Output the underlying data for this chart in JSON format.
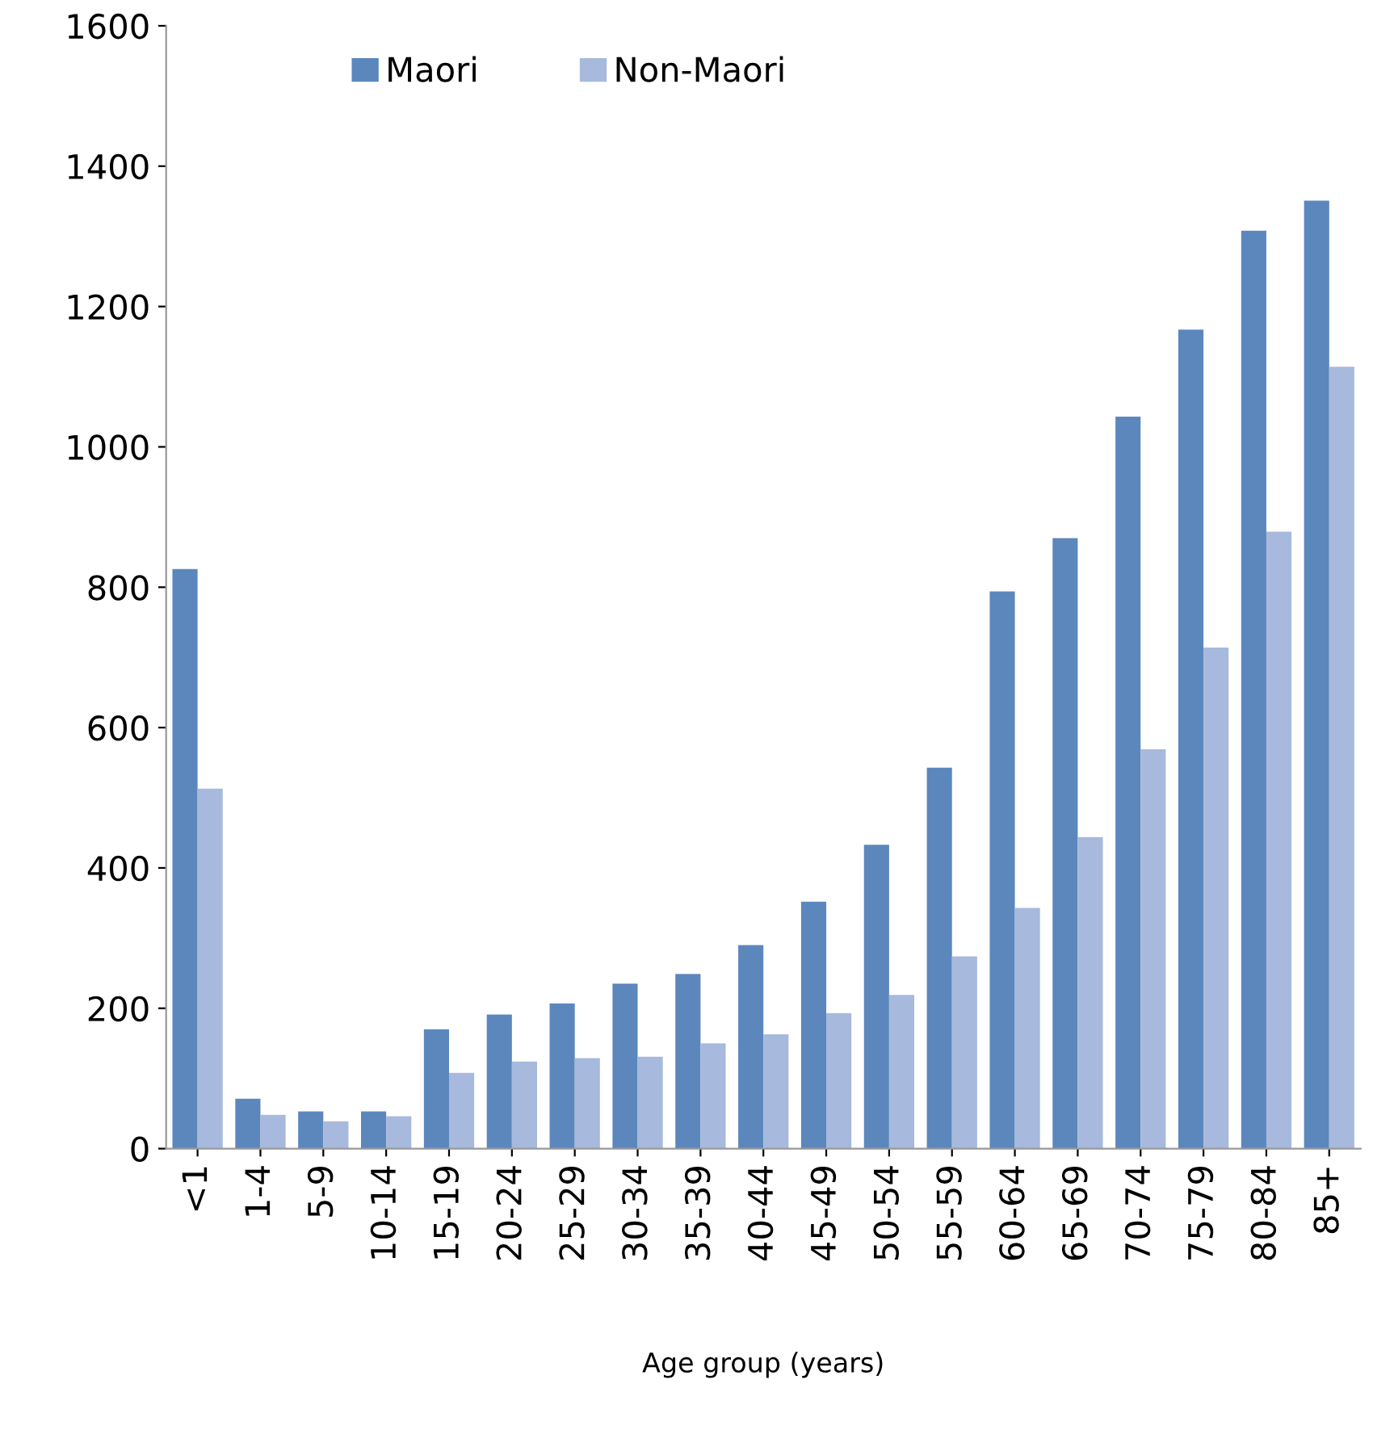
{
  "chart_data": {
    "type": "bar",
    "xlabel": "Age group (years)",
    "categories": [
      "<1",
      "1-4",
      "5-9",
      "10-14",
      "15-19",
      "20-24",
      "25-29",
      "30-34",
      "35-39",
      "40-44",
      "45-49",
      "50-54",
      "55-59",
      "60-64",
      "65-69",
      "70-74",
      "75-79",
      "80-84",
      "85+"
    ],
    "series": [
      {
        "name": "Maori",
        "color": "#5b87bd",
        "values": [
          826,
          71,
          53,
          53,
          170,
          191,
          207,
          235,
          249,
          290,
          352,
          433,
          543,
          794,
          870,
          1043,
          1167,
          1308,
          1351
        ]
      },
      {
        "name": "Non-Maori",
        "color": "#a7b9dc",
        "values": [
          513,
          48,
          39,
          46,
          108,
          124,
          129,
          131,
          150,
          163,
          193,
          219,
          274,
          343,
          444,
          569,
          714,
          879,
          1114
        ]
      }
    ],
    "ylim": [
      0,
      1600
    ],
    "yticks": [
      0,
      200,
      400,
      600,
      800,
      1000,
      1200,
      1400,
      1600
    ],
    "grid": false,
    "legend": "top left"
  }
}
